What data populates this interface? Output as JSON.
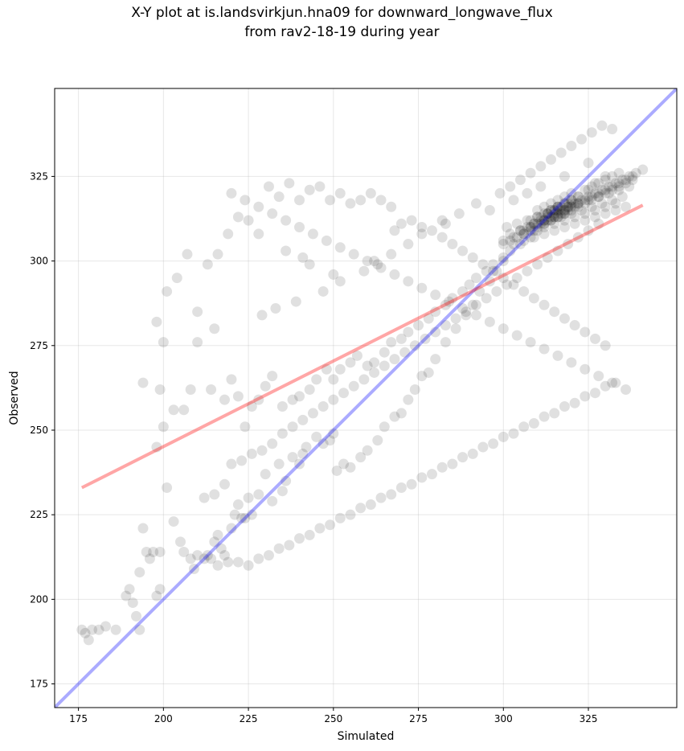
{
  "chart_data": {
    "type": "scatter",
    "title_line1": "X-Y plot at is.landsvirkjun.hna09 for downward_longwave_flux",
    "title_line2": "from rav2-18-19 during year",
    "xlabel": "Simulated",
    "ylabel": "Observed",
    "xlim": [
      168,
      351
    ],
    "ylim": [
      168,
      351
    ],
    "xticks": [
      175,
      200,
      225,
      250,
      275,
      300,
      325
    ],
    "yticks": [
      175,
      200,
      225,
      250,
      275,
      300,
      325
    ],
    "grid": true,
    "point_color": "#000000",
    "point_alpha": 0.12,
    "identity_line": {
      "color": "#0000ff",
      "alpha": 0.33,
      "x": [
        168,
        351
      ],
      "y": [
        168,
        351
      ]
    },
    "fit_line": {
      "color": "#ff0000",
      "alpha": 0.35,
      "x": [
        176,
        341
      ],
      "y": [
        233,
        316.5
      ]
    },
    "points": {
      "x": [
        176,
        177,
        178,
        179,
        181,
        183,
        186,
        189,
        190,
        191,
        192,
        193,
        193,
        194,
        195,
        196,
        197,
        198,
        199,
        199,
        198,
        200,
        201,
        203,
        203,
        205,
        206,
        208,
        209,
        210,
        212,
        213,
        214,
        215,
        216,
        217,
        218,
        220,
        221,
        222,
        223,
        224,
        225,
        226,
        228,
        230,
        232,
        234,
        235,
        236,
        238,
        240,
        241,
        242,
        245,
        247,
        249,
        250,
        251,
        253,
        255,
        258,
        260,
        263,
        265,
        268,
        270,
        272,
        274,
        276,
        278,
        280,
        283,
        286,
        289,
        291,
        293,
        296,
        298,
        300,
        194,
        199,
        200,
        206,
        208,
        210,
        214,
        215,
        218,
        220,
        222,
        224,
        226,
        228,
        230,
        232,
        235,
        238,
        240,
        243,
        245,
        248,
        250,
        252,
        255,
        257,
        260,
        262,
        265,
        267,
        270,
        272,
        275,
        278,
        280,
        283,
        285,
        288,
        290,
        292,
        295,
        297,
        300,
        302,
        305,
        308,
        310,
        312,
        315,
        318,
        320,
        322,
        325,
        327,
        330,
        198,
        201,
        204,
        207,
        210,
        213,
        216,
        219,
        222,
        225,
        228,
        231,
        234,
        237,
        240,
        243,
        246,
        249,
        252,
        255,
        258,
        261,
        264,
        267,
        270,
        273,
        276,
        279,
        282,
        285,
        288,
        291,
        294,
        297,
        300,
        303,
        306,
        309,
        312,
        315,
        318,
        321,
        324,
        327,
        330,
        212,
        215,
        218,
        220,
        223,
        226,
        229,
        232,
        235,
        238,
        241,
        244,
        247,
        250,
        253,
        256,
        259,
        262,
        265,
        268,
        271,
        274,
        277,
        280,
        283,
        286,
        289,
        292,
        295,
        298,
        301,
        304,
        307,
        310,
        313,
        316,
        319,
        322,
        325,
        328,
        216,
        219,
        222,
        225,
        228,
        231,
        234,
        237,
        240,
        243,
        246,
        249,
        252,
        255,
        258,
        261,
        264,
        267,
        270,
        273,
        276,
        279,
        282,
        285,
        288,
        291,
        294,
        297,
        300,
        303,
        306,
        309,
        312,
        315,
        318,
        321,
        324,
        327,
        330,
        333,
        220,
        224,
        228,
        232,
        236,
        240,
        244,
        248,
        252,
        256,
        260,
        264,
        268,
        272,
        276,
        280,
        284,
        288,
        292,
        296,
        300,
        304,
        308,
        312,
        316,
        320,
        324,
        328,
        332,
        336,
        300,
        302,
        304,
        306,
        308,
        310,
        312,
        314,
        316,
        318,
        320,
        322,
        324,
        326,
        328,
        330,
        332,
        334,
        336,
        338,
        305,
        307,
        309,
        311,
        313,
        315,
        317,
        319,
        321,
        323,
        325,
        327,
        329,
        331,
        333,
        335,
        337,
        339,
        341,
        303,
        306,
        309,
        312,
        315,
        318,
        321,
        324,
        327,
        330,
        333,
        336,
        310,
        312,
        314,
        316,
        318,
        320,
        311,
        313,
        315,
        317,
        319,
        309,
        313,
        316,
        318,
        314,
        316,
        312,
        315,
        317,
        319,
        321,
        313,
        315,
        316,
        318,
        320,
        322,
        308,
        310,
        312,
        314,
        316,
        318,
        320,
        324,
        326,
        328,
        330,
        332,
        334,
        306,
        308,
        310,
        312,
        314,
        316,
        318,
        320,
        322,
        324,
        326,
        328,
        330,
        332,
        334,
        336,
        338,
        301,
        304,
        307,
        310,
        313,
        316,
        319,
        322,
        325,
        328,
        331,
        334,
        337,
        302,
        305,
        308,
        311,
        314,
        317,
        320,
        323,
        326,
        329,
        332,
        335,
        300,
        303,
        306,
        309,
        312,
        315,
        318,
        321,
        324,
        327,
        330,
        333,
        236,
        241,
        243,
        250,
        262,
        268,
        282,
        296,
        303,
        307,
        311,
        318,
        325,
        229,
        233,
        239,
        247,
        252,
        259,
        263,
        267,
        272,
        276,
        283,
        287,
        292,
        299,
        302,
        305,
        308,
        311,
        314,
        317,
        320,
        323,
        326,
        329,
        332
      ],
      "y": [
        191,
        190,
        188,
        191,
        191,
        192,
        191,
        201,
        203,
        199,
        195,
        191,
        208,
        221,
        214,
        212,
        214,
        201,
        214,
        203,
        245,
        251,
        233,
        223,
        256,
        217,
        214,
        212,
        209,
        213,
        212,
        213,
        212,
        217,
        219,
        215,
        213,
        221,
        225,
        228,
        224,
        224,
        230,
        225,
        231,
        237,
        229,
        240,
        232,
        235,
        242,
        240,
        243,
        245,
        248,
        246,
        247,
        249,
        238,
        240,
        239,
        242,
        244,
        247,
        251,
        254,
        255,
        259,
        262,
        266,
        267,
        271,
        276,
        280,
        284,
        287,
        291,
        294,
        297,
        300,
        264,
        262,
        276,
        256,
        262,
        276,
        262,
        280,
        259,
        265,
        260,
        251,
        257,
        259,
        263,
        266,
        257,
        259,
        260,
        262,
        265,
        268,
        265,
        268,
        270,
        272,
        269,
        270,
        273,
        276,
        277,
        279,
        281,
        283,
        285,
        287,
        289,
        291,
        293,
        295,
        297,
        299,
        301,
        303,
        305,
        307,
        309,
        311,
        313,
        315,
        317,
        319,
        321,
        323,
        325,
        282,
        291,
        295,
        302,
        285,
        299,
        302,
        308,
        313,
        312,
        308,
        322,
        319,
        323,
        318,
        321,
        322,
        318,
        320,
        317,
        318,
        320,
        318,
        316,
        311,
        312,
        310,
        309,
        307,
        305,
        303,
        301,
        299,
        297,
        295,
        293,
        291,
        289,
        287,
        285,
        283,
        281,
        279,
        277,
        275,
        230,
        231,
        234,
        240,
        241,
        243,
        244,
        246,
        249,
        251,
        253,
        255,
        257,
        259,
        261,
        263,
        265,
        267,
        269,
        271,
        273,
        275,
        277,
        279,
        281,
        283,
        285,
        287,
        289,
        291,
        293,
        295,
        297,
        299,
        301,
        303,
        305,
        307,
        309,
        311,
        210,
        211,
        211,
        210,
        212,
        213,
        215,
        216,
        218,
        219,
        221,
        222,
        224,
        225,
        227,
        228,
        230,
        231,
        233,
        234,
        236,
        237,
        239,
        240,
        242,
        243,
        245,
        246,
        248,
        249,
        251,
        252,
        254,
        255,
        257,
        258,
        260,
        261,
        263,
        264,
        320,
        318,
        316,
        314,
        312,
        310,
        308,
        306,
        304,
        302,
        300,
        298,
        296,
        294,
        292,
        290,
        288,
        286,
        284,
        282,
        280,
        278,
        276,
        274,
        272,
        270,
        268,
        266,
        264,
        262,
        305,
        306,
        307,
        308,
        309,
        310,
        311,
        312,
        313,
        314,
        315,
        316,
        317,
        318,
        319,
        320,
        321,
        322,
        323,
        324,
        309,
        310,
        311,
        312,
        313,
        314,
        315,
        316,
        317,
        318,
        319,
        320,
        321,
        322,
        323,
        324,
        325,
        326,
        327,
        305,
        306,
        307,
        308,
        309,
        310,
        311,
        312,
        313,
        314,
        315,
        316,
        315,
        316,
        317,
        318,
        319,
        320,
        313,
        314,
        315,
        316,
        317,
        311,
        312,
        313,
        314,
        315,
        316,
        312,
        313,
        314,
        315,
        316,
        314,
        315,
        316,
        317,
        318,
        319,
        312,
        313,
        314,
        315,
        316,
        317,
        318,
        321,
        322,
        323,
        324,
        325,
        326,
        309,
        310,
        311,
        312,
        313,
        314,
        315,
        316,
        317,
        318,
        319,
        320,
        321,
        322,
        323,
        324,
        325,
        310,
        311,
        312,
        313,
        314,
        315,
        316,
        317,
        318,
        319,
        320,
        321,
        322,
        308,
        309,
        310,
        311,
        312,
        313,
        314,
        315,
        316,
        317,
        318,
        319,
        306,
        307,
        308,
        309,
        310,
        311,
        312,
        313,
        314,
        315,
        316,
        317,
        303,
        301,
        299,
        296,
        300,
        309,
        312,
        315,
        318,
        320,
        322,
        325,
        329,
        284,
        286,
        288,
        291,
        294,
        297,
        299,
        302,
        305,
        308,
        311,
        314,
        317,
        320,
        322,
        324,
        326,
        328,
        330,
        332,
        334,
        336,
        338,
        340,
        339
      ]
    }
  }
}
